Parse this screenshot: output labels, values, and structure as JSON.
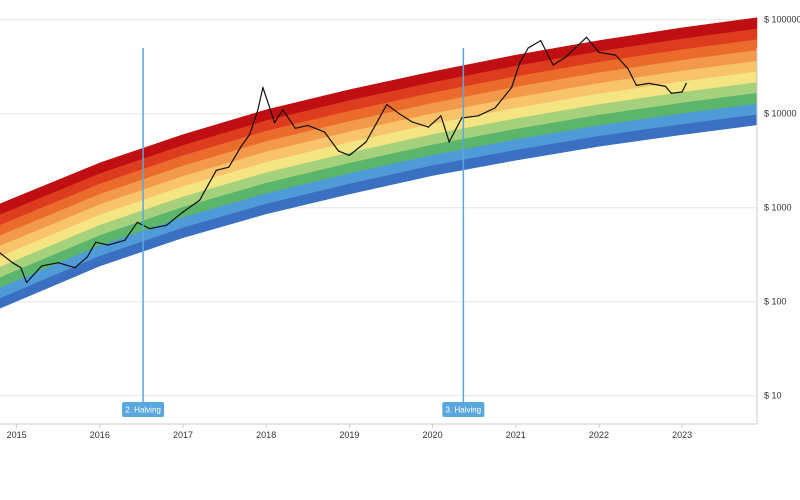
{
  "chart_data": {
    "type": "area",
    "title": "",
    "xlabel": "",
    "ylabel": "",
    "y_scale": "log",
    "ylim": [
      5,
      50000
    ],
    "xlim": [
      2014.8,
      2023.9
    ],
    "x_ticks": [
      {
        "x": 2015,
        "label": "2015"
      },
      {
        "x": 2016,
        "label": "2016"
      },
      {
        "x": 2017,
        "label": "2017"
      },
      {
        "x": 2018,
        "label": "2018"
      },
      {
        "x": 2019,
        "label": "2019"
      },
      {
        "x": 2020,
        "label": "2020"
      },
      {
        "x": 2021,
        "label": "2021"
      },
      {
        "x": 2022,
        "label": "2022"
      },
      {
        "x": 2023,
        "label": "2023"
      }
    ],
    "y_ticks": [
      {
        "y": 10,
        "label": "$ 10"
      },
      {
        "y": 100,
        "label": "$ 100"
      },
      {
        "y": 1000,
        "label": "$ 1000"
      },
      {
        "y": 10000,
        "label": "$ 10000"
      },
      {
        "y": 100000,
        "label": "$ 100000"
      }
    ],
    "grid": true,
    "bands": {
      "colors": [
        "#3a6fc2",
        "#4f9bd8",
        "#5bb56b",
        "#a6d17c",
        "#f5e482",
        "#f8c36a",
        "#f39a4a",
        "#ea6b2c",
        "#dd3c1e",
        "#c00f12"
      ],
      "lower_edge": [
        {
          "x": 2014.8,
          "y": 85
        },
        {
          "x": 2016,
          "y": 240
        },
        {
          "x": 2017,
          "y": 480
        },
        {
          "x": 2018,
          "y": 860
        },
        {
          "x": 2019,
          "y": 1400
        },
        {
          "x": 2020,
          "y": 2200
        },
        {
          "x": 2021,
          "y": 3200
        },
        {
          "x": 2022,
          "y": 4500
        },
        {
          "x": 2023,
          "y": 6000
        },
        {
          "x": 2023.9,
          "y": 7600
        }
      ],
      "upper_edge": [
        {
          "x": 2014.8,
          "y": 1100
        },
        {
          "x": 2016,
          "y": 3000
        },
        {
          "x": 2017,
          "y": 6000
        },
        {
          "x": 2018,
          "y": 11000
        },
        {
          "x": 2019,
          "y": 18000
        },
        {
          "x": 2020,
          "y": 28000
        },
        {
          "x": 2021,
          "y": 42000
        },
        {
          "x": 2022,
          "y": 60000
        },
        {
          "x": 2023,
          "y": 82000
        },
        {
          "x": 2023.9,
          "y": 105000
        }
      ]
    },
    "series": [
      {
        "type": "line",
        "color": "#111111",
        "points": [
          {
            "x": 2014.8,
            "y": 330
          },
          {
            "x": 2014.95,
            "y": 260
          },
          {
            "x": 2015.05,
            "y": 230
          },
          {
            "x": 2015.12,
            "y": 160
          },
          {
            "x": 2015.3,
            "y": 240
          },
          {
            "x": 2015.5,
            "y": 260
          },
          {
            "x": 2015.7,
            "y": 230
          },
          {
            "x": 2015.85,
            "y": 300
          },
          {
            "x": 2015.95,
            "y": 430
          },
          {
            "x": 2016.1,
            "y": 400
          },
          {
            "x": 2016.3,
            "y": 450
          },
          {
            "x": 2016.45,
            "y": 700
          },
          {
            "x": 2016.6,
            "y": 600
          },
          {
            "x": 2016.8,
            "y": 650
          },
          {
            "x": 2017.0,
            "y": 900
          },
          {
            "x": 2017.2,
            "y": 1200
          },
          {
            "x": 2017.4,
            "y": 2500
          },
          {
            "x": 2017.55,
            "y": 2700
          },
          {
            "x": 2017.7,
            "y": 4500
          },
          {
            "x": 2017.8,
            "y": 6000
          },
          {
            "x": 2017.9,
            "y": 11000
          },
          {
            "x": 2017.96,
            "y": 19000
          },
          {
            "x": 2018.05,
            "y": 11000
          },
          {
            "x": 2018.1,
            "y": 8000
          },
          {
            "x": 2018.2,
            "y": 11000
          },
          {
            "x": 2018.35,
            "y": 7000
          },
          {
            "x": 2018.5,
            "y": 7500
          },
          {
            "x": 2018.7,
            "y": 6400
          },
          {
            "x": 2018.87,
            "y": 4000
          },
          {
            "x": 2019.0,
            "y": 3600
          },
          {
            "x": 2019.2,
            "y": 5000
          },
          {
            "x": 2019.45,
            "y": 12500
          },
          {
            "x": 2019.6,
            "y": 10000
          },
          {
            "x": 2019.75,
            "y": 8200
          },
          {
            "x": 2019.95,
            "y": 7200
          },
          {
            "x": 2020.1,
            "y": 9500
          },
          {
            "x": 2020.2,
            "y": 5000
          },
          {
            "x": 2020.35,
            "y": 9000
          },
          {
            "x": 2020.55,
            "y": 9500
          },
          {
            "x": 2020.75,
            "y": 11500
          },
          {
            "x": 2020.95,
            "y": 19000
          },
          {
            "x": 2021.05,
            "y": 35000
          },
          {
            "x": 2021.15,
            "y": 50000
          },
          {
            "x": 2021.3,
            "y": 60000
          },
          {
            "x": 2021.45,
            "y": 33000
          },
          {
            "x": 2021.6,
            "y": 40000
          },
          {
            "x": 2021.85,
            "y": 65000
          },
          {
            "x": 2022.0,
            "y": 45000
          },
          {
            "x": 2022.2,
            "y": 42000
          },
          {
            "x": 2022.35,
            "y": 30000
          },
          {
            "x": 2022.45,
            "y": 20000
          },
          {
            "x": 2022.6,
            "y": 21000
          },
          {
            "x": 2022.8,
            "y": 19500
          },
          {
            "x": 2022.87,
            "y": 16500
          },
          {
            "x": 2023.0,
            "y": 17000
          },
          {
            "x": 2023.05,
            "y": 21000
          }
        ]
      }
    ],
    "events": [
      {
        "x": 2016.52,
        "label": "2. Halving",
        "color": "#5aa7e0"
      },
      {
        "x": 2020.37,
        "label": "3. Halving",
        "color": "#5aa7e0"
      }
    ]
  }
}
